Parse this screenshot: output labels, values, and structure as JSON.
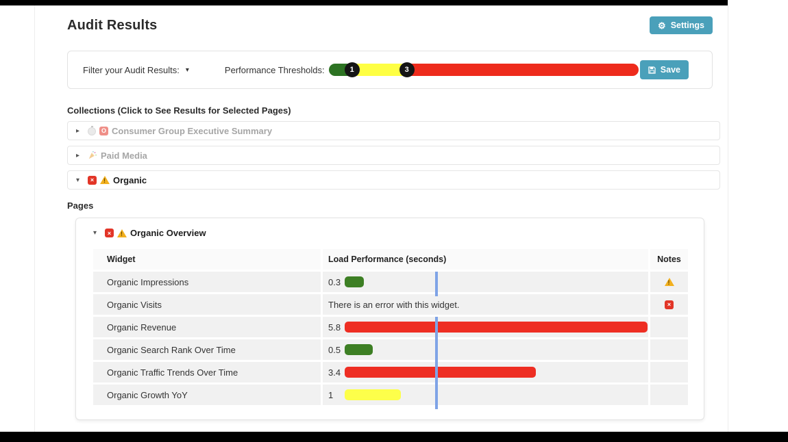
{
  "title": "Audit Results",
  "settings_button": "Settings",
  "filter_bar": {
    "filter_label": "Filter your Audit Results:",
    "thresholds_label": "Performance Thresholds:",
    "handle_low": "1",
    "handle_high": "3",
    "save_label": "Save"
  },
  "collections": {
    "heading": "Collections (Click to See Results for Selected Pages)",
    "items": [
      {
        "label": "Consumer Group Executive Summary",
        "state": "collapsed",
        "icons": [
          "stopwatch-icon",
          "o-error-icon"
        ]
      },
      {
        "label": "Paid Media",
        "state": "collapsed",
        "icons": [
          "party-popper-icon"
        ]
      },
      {
        "label": "Organic",
        "state": "expanded",
        "icons": [
          "error-icon",
          "warning-icon"
        ]
      }
    ],
    "pages_heading": "Pages"
  },
  "overview": {
    "title": "Organic Overview",
    "table": {
      "col_widget": "Widget",
      "col_performance": "Load Performance (seconds)",
      "col_notes": "Notes",
      "rows": [
        {
          "widget": "Organic Impressions",
          "value": "0.3",
          "seconds": 0.3,
          "bar_color": "green",
          "note": "warning"
        },
        {
          "widget": "Organic Visits",
          "error_text": "There is an error with this widget.",
          "note": "error"
        },
        {
          "widget": "Organic Revenue",
          "value": "5.8",
          "seconds": 5.8,
          "bar_color": "red",
          "note": ""
        },
        {
          "widget": "Organic Search Rank Over Time",
          "value": "0.5",
          "seconds": 0.5,
          "bar_color": "green",
          "note": ""
        },
        {
          "widget": "Organic Traffic Trends Over Time",
          "value": "3.4",
          "seconds": 3.4,
          "bar_color": "red",
          "note": ""
        },
        {
          "widget": "Organic Growth YoY",
          "value": "1",
          "seconds": 1,
          "bar_color": "yellow",
          "note": ""
        }
      ]
    }
  },
  "colors": {
    "accent_teal": "#4aa0ba",
    "bar_green": "#3d7f24",
    "bar_red": "#ee2e23",
    "bar_yellow": "#fdff4a",
    "slider_green": "#2d7323",
    "slider_yellow": "#feff43",
    "slider_red": "#ee2b1c",
    "threshold_marker_blue": "#7fa3e6"
  }
}
